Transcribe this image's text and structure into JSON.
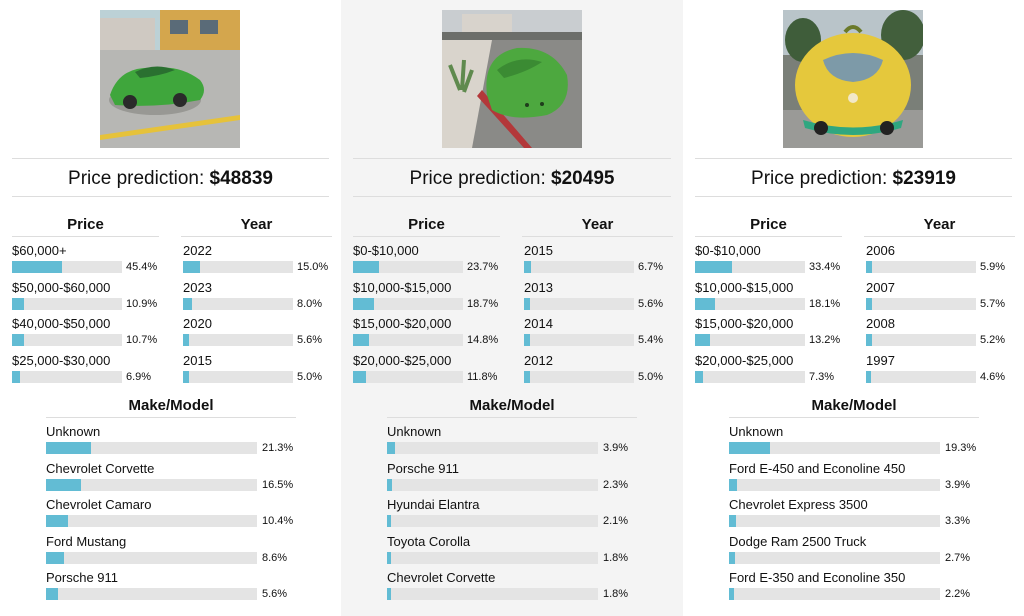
{
  "colors": {
    "bar_fill": "#62bcd4",
    "bar_track": "#e4e4e4",
    "highlight_bg": "#f4f4f4"
  },
  "labels": {
    "prediction_prefix": "Price prediction:",
    "price_title": "Price",
    "year_title": "Year",
    "make_title": "Make/Model"
  },
  "cars": [
    {
      "photo_icon": "green-cucumber-car-photo",
      "prediction": "$48839",
      "price": [
        {
          "label": "$60,000+",
          "pct": "45.4%",
          "value": 45.4
        },
        {
          "label": "$50,000-$60,000",
          "pct": "10.9%",
          "value": 10.9
        },
        {
          "label": "$40,000-$50,000",
          "pct": "10.7%",
          "value": 10.7
        },
        {
          "label": "$25,000-$30,000",
          "pct": "6.9%",
          "value": 6.9
        }
      ],
      "year": [
        {
          "label": "2022",
          "pct": "15.0%",
          "value": 15.0
        },
        {
          "label": "2023",
          "pct": "8.0%",
          "value": 8.0
        },
        {
          "label": "2020",
          "pct": "5.6%",
          "value": 5.6
        },
        {
          "label": "2015",
          "pct": "5.0%",
          "value": 5.0
        }
      ],
      "make": [
        {
          "label": "Unknown",
          "pct": "21.3%",
          "value": 21.3
        },
        {
          "label": "Chevrolet Corvette",
          "pct": "16.5%",
          "value": 16.5
        },
        {
          "label": "Chevrolet Camaro",
          "pct": "10.4%",
          "value": 10.4
        },
        {
          "label": "Ford Mustang",
          "pct": "8.6%",
          "value": 8.6
        },
        {
          "label": "Porsche 911",
          "pct": "5.6%",
          "value": 5.6
        }
      ]
    },
    {
      "photo_icon": "green-blob-car-photo",
      "prediction": "$20495",
      "price": [
        {
          "label": "$0-$10,000",
          "pct": "23.7%",
          "value": 23.7
        },
        {
          "label": "$10,000-$15,000",
          "pct": "18.7%",
          "value": 18.7
        },
        {
          "label": "$15,000-$20,000",
          "pct": "14.8%",
          "value": 14.8
        },
        {
          "label": "$20,000-$25,000",
          "pct": "11.8%",
          "value": 11.8
        }
      ],
      "year": [
        {
          "label": "2015",
          "pct": "6.7%",
          "value": 6.7
        },
        {
          "label": "2013",
          "pct": "5.6%",
          "value": 5.6
        },
        {
          "label": "2014",
          "pct": "5.4%",
          "value": 5.4
        },
        {
          "label": "2012",
          "pct": "5.0%",
          "value": 5.0
        }
      ],
      "make": [
        {
          "label": "Unknown",
          "pct": "3.9%",
          "value": 3.9
        },
        {
          "label": "Porsche 911",
          "pct": "2.3%",
          "value": 2.3
        },
        {
          "label": "Hyundai Elantra",
          "pct": "2.1%",
          "value": 2.1
        },
        {
          "label": "Toyota Corolla",
          "pct": "1.8%",
          "value": 1.8
        },
        {
          "label": "Chevrolet Corvette",
          "pct": "1.8%",
          "value": 1.8
        }
      ]
    },
    {
      "photo_icon": "lemon-car-photo",
      "prediction": "$23919",
      "price": [
        {
          "label": "$0-$10,000",
          "pct": "33.4%",
          "value": 33.4
        },
        {
          "label": "$10,000-$15,000",
          "pct": "18.1%",
          "value": 18.1
        },
        {
          "label": "$15,000-$20,000",
          "pct": "13.2%",
          "value": 13.2
        },
        {
          "label": "$20,000-$25,000",
          "pct": "7.3%",
          "value": 7.3
        }
      ],
      "year": [
        {
          "label": "2006",
          "pct": "5.9%",
          "value": 5.9
        },
        {
          "label": "2007",
          "pct": "5.7%",
          "value": 5.7
        },
        {
          "label": "2008",
          "pct": "5.2%",
          "value": 5.2
        },
        {
          "label": "1997",
          "pct": "4.6%",
          "value": 4.6
        }
      ],
      "make": [
        {
          "label": "Unknown",
          "pct": "19.3%",
          "value": 19.3
        },
        {
          "label": "Ford E-450 and Econoline 450",
          "pct": "3.9%",
          "value": 3.9
        },
        {
          "label": "Chevrolet Express 3500",
          "pct": "3.3%",
          "value": 3.3
        },
        {
          "label": "Dodge Ram 2500 Truck",
          "pct": "2.7%",
          "value": 2.7
        },
        {
          "label": "Ford E-350 and Econoline 350",
          "pct": "2.2%",
          "value": 2.2
        }
      ]
    }
  ]
}
